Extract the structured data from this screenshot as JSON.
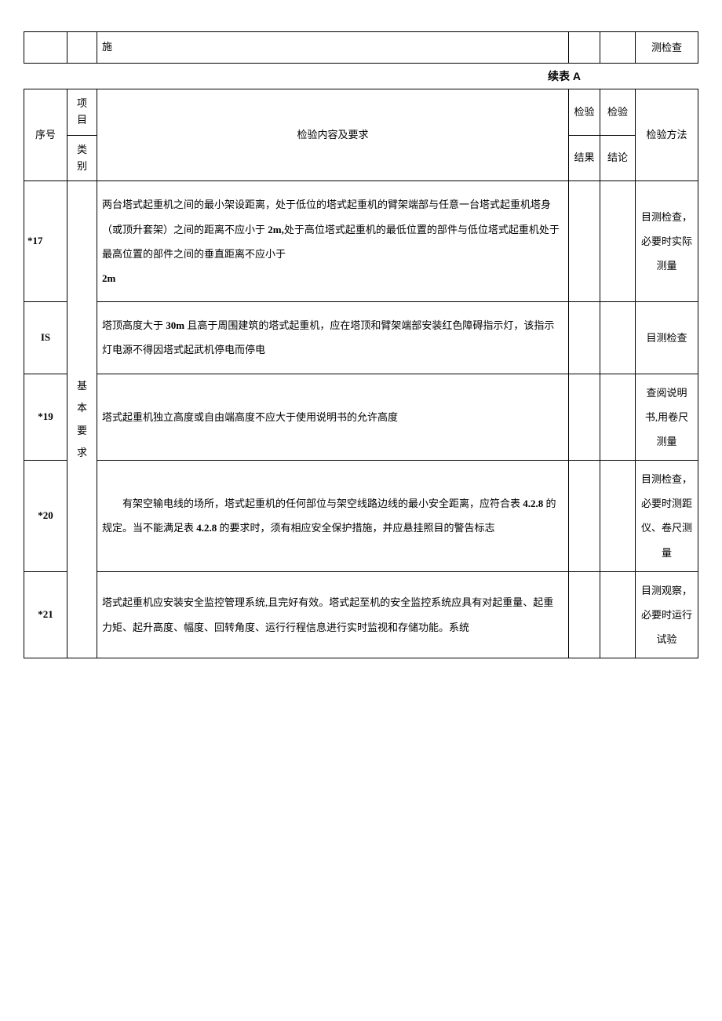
{
  "fragment_row": {
    "content": "施",
    "method": "测检查"
  },
  "continuation_label": "续表 A",
  "header": {
    "seq": "序号",
    "category_line1": "项目",
    "category_line2": "类别",
    "content": "检验内容及要求",
    "result_line1": "检验",
    "result_line2": "结果",
    "conclusion_line1": "检验",
    "conclusion_line2": "结论",
    "method": "检验方法"
  },
  "category_label": "基本要求",
  "rows": [
    {
      "seq": "*17",
      "content_prefix": "两台塔式起重机之间的最小架设距离，处于低位的塔式起重机的臂架端部与任意一台塔式起重机塔身（或顶升套架）之间的距离不应小于 ",
      "content_bold1": "2m,",
      "content_mid": "处于高位塔式起重机的最低位置的部件与低位塔式起重机处于最高位置的部件之间的垂直距离不应小于",
      "content_bold2": "2m",
      "method": "目测检查，必要时实际测量"
    },
    {
      "seq": "IS",
      "content_prefix": "塔顶高度大于 ",
      "content_bold1": "30m ",
      "content_mid": "且高于周围建筑的塔式起重机，应在塔顶和臂架端部安装红色障碍指示灯，该指示灯电源不得因塔式起武机停电而停电",
      "method": "目测检查"
    },
    {
      "seq": "*19",
      "content": "塔式起重机独立高度或自由端高度不应大于使用说明书的允许高度",
      "method": "查阅说明书,用卷尺测量"
    },
    {
      "seq": "*20",
      "content_prefix": "　　有架空输电线的场所，塔式起重机的任何部位与架空线路边线的最小安全距离，应符合表 ",
      "content_bold1": "4.2.8 ",
      "content_mid": "的规定。当不能满足表 ",
      "content_bold2": "4.2.8 ",
      "content_suffix": "的要求时，须有相应安全保护措施，并应悬挂照目的警告标志",
      "method": "目测检查，必要时测距仪、卷尺测量"
    },
    {
      "seq": "*21",
      "content": "塔式起重机应安装安全监控管理系统,且完好有效。塔式起至机的安全监控系统应具有对起重量、起重力矩、起升高度、幅度、回转角度、运行行程信息进行实时监视和存储功能。系统",
      "method": "目测观察，必要时运行试验"
    }
  ]
}
